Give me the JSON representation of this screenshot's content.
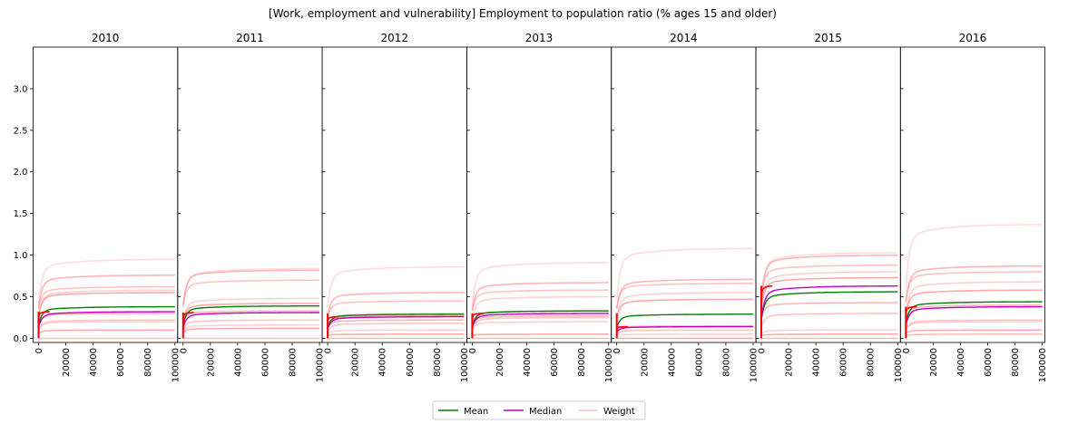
{
  "chart_data": {
    "type": "line",
    "title": "[Work, employment and vulnerability] Employment to population ratio (% ages 15 and older)",
    "panels": [
      "2010",
      "2011",
      "2012",
      "2013",
      "2014",
      "2015",
      "2016"
    ],
    "xlim": [
      0,
      100000
    ],
    "ylim": [
      -0.05,
      3.5
    ],
    "xticks": [
      0,
      20000,
      40000,
      60000,
      80000,
      100000
    ],
    "xtick_labels": [
      "0",
      "20000",
      "40000",
      "60000",
      "80000",
      "100000"
    ],
    "yticks": [
      0.0,
      0.5,
      1.0,
      1.5,
      2.0,
      2.5,
      3.0
    ],
    "ytick_labels": [
      "0.0",
      "0.5",
      "1.0",
      "1.5",
      "2.0",
      "2.5",
      "3.0"
    ],
    "legend": {
      "position": "bottom-center",
      "entries": [
        {
          "label": "Mean",
          "color": "#008000"
        },
        {
          "label": "Median",
          "color": "#bf00bf"
        },
        {
          "label": "Weight",
          "color": "#ffbfbf"
        }
      ]
    },
    "colors": {
      "mean": "#008000",
      "median": "#bf00bf",
      "weight": "#ff9999",
      "median_marker": "#ff0000"
    },
    "series": [
      {
        "name": "Mean",
        "final_values": [
          0.38,
          0.39,
          0.29,
          0.33,
          0.29,
          0.56,
          0.44
        ]
      },
      {
        "name": "Median",
        "final_values": [
          0.32,
          0.31,
          0.26,
          0.3,
          0.14,
          0.63,
          0.38
        ]
      },
      {
        "name": "Weight",
        "final_values_by_panel": [
          [
            0.95,
            0.76,
            0.62,
            0.58,
            0.55,
            0.3,
            0.22,
            0.2,
            0.1,
            0.0
          ],
          [
            0.84,
            0.82,
            0.7,
            0.48,
            0.42,
            0.33,
            0.22,
            0.16,
            0.12,
            0.0
          ],
          [
            0.86,
            0.55,
            0.45,
            0.3,
            0.27,
            0.22,
            0.18,
            0.1,
            0.05,
            0.0
          ],
          [
            0.91,
            0.67,
            0.58,
            0.5,
            0.33,
            0.27,
            0.25,
            0.2,
            0.05,
            0.0
          ],
          [
            1.08,
            0.71,
            0.66,
            0.55,
            0.47,
            0.15,
            0.1,
            0.05,
            0.0
          ],
          [
            1.03,
            1.0,
            0.88,
            0.8,
            0.73,
            0.43,
            0.3,
            0.1,
            0.05,
            0.0
          ],
          [
            1.37,
            0.87,
            0.8,
            0.68,
            0.58,
            0.4,
            0.22,
            0.2,
            0.1,
            0.05
          ]
        ]
      }
    ]
  }
}
